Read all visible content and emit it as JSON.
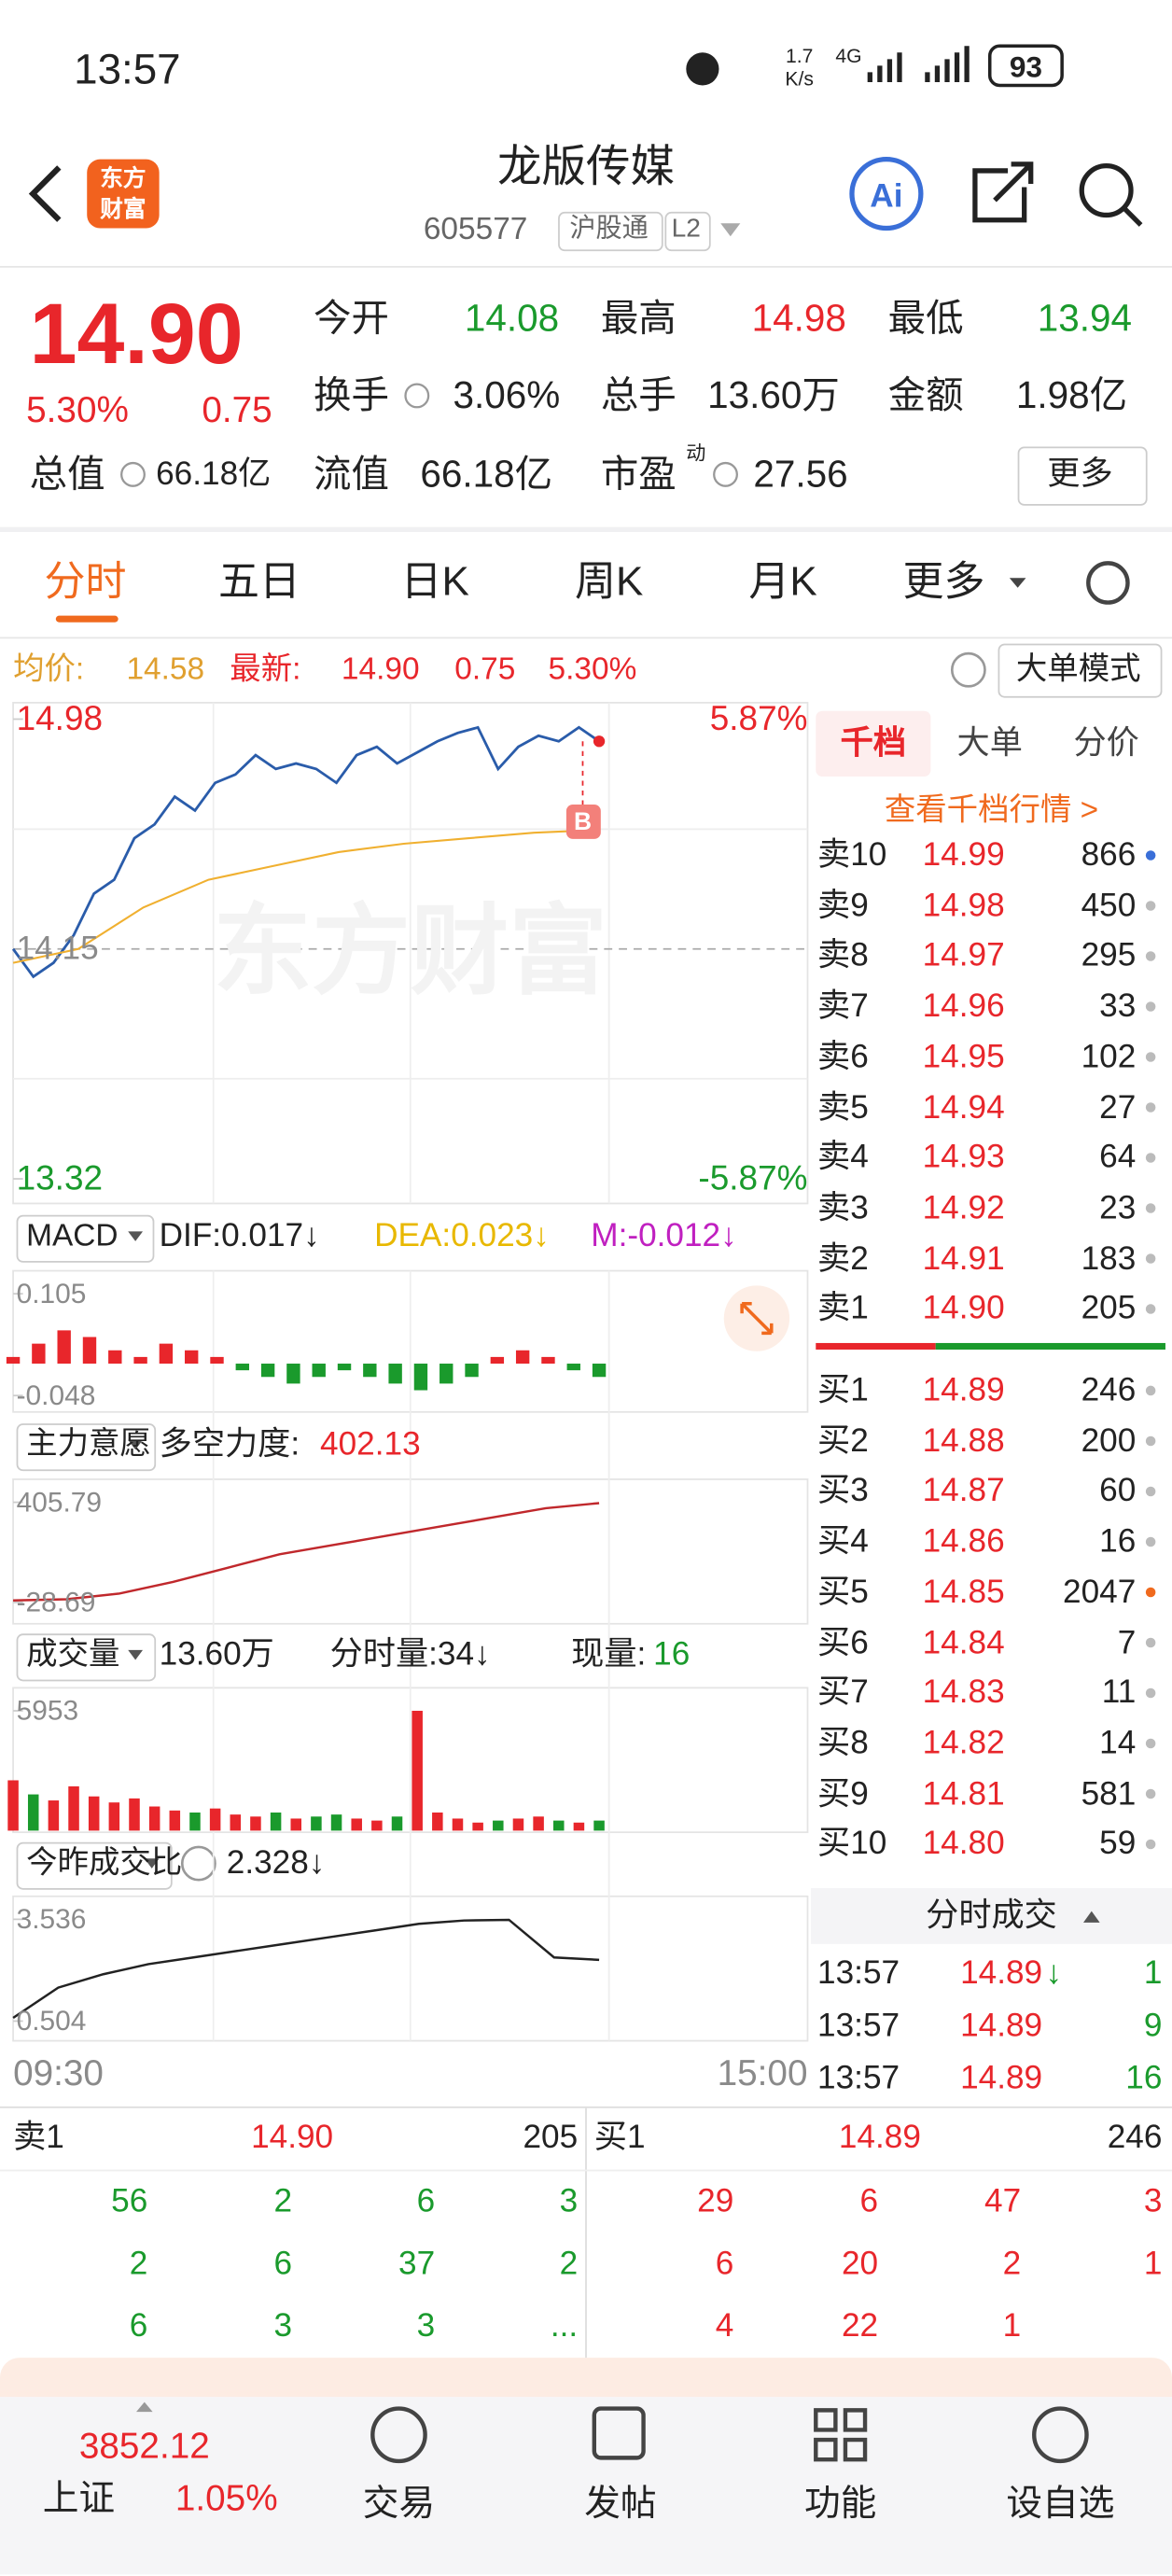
{
  "status": {
    "time": "13:57",
    "speed": "1.7",
    "speed_unit": "K/s",
    "network": "4G",
    "battery": "93"
  },
  "header": {
    "logo": [
      "东方",
      "财富"
    ],
    "title": "龙版传媒",
    "code": "605577",
    "badge": "沪股通",
    "level": "L2"
  },
  "quote": {
    "price": "14.90",
    "change_pct": "5.30%",
    "change": "0.75",
    "fields": [
      {
        "label": "今开",
        "value": "14.08"
      },
      {
        "label": "最高",
        "value": "14.98"
      },
      {
        "label": "最低",
        "value": "13.94"
      },
      {
        "label": "换手",
        "value": "3.06%"
      },
      {
        "label": "总手",
        "value": "13.60万"
      },
      {
        "label": "金额",
        "value": "1.98亿"
      },
      {
        "label": "总值",
        "value": "66.18亿"
      },
      {
        "label": "流值",
        "value": "66.18亿"
      },
      {
        "label": "市盈",
        "sup": "动",
        "value": "27.56"
      }
    ],
    "more": "更多"
  },
  "tabs": [
    "分时",
    "五日",
    "日K",
    "周K",
    "月K",
    "更多"
  ],
  "info_bar": {
    "avg_label": "均价:",
    "avg": "14.58",
    "last_label": "最新:",
    "last": "14.90",
    "change": "0.75",
    "change_pct": "5.30%",
    "mode": "大单模式"
  },
  "chart_data": [
    {
      "type": "line",
      "watermark": "东方财富",
      "marker": "B",
      "ylim": [
        13.32,
        14.98
      ],
      "yticks": [
        13.32,
        14.15,
        14.98
      ],
      "pct_labels": [
        "5.87%",
        "-5.87%"
      ],
      "x_labels": [
        "09:30",
        "15:00"
      ],
      "series": [
        {
          "color": "#2a5caa",
          "values": [
            14.15,
            14.05,
            14.1,
            14.2,
            14.35,
            14.4,
            14.55,
            14.6,
            14.7,
            14.65,
            14.75,
            14.78,
            14.85,
            14.8,
            14.82,
            14.8,
            14.75,
            14.85,
            14.88,
            14.82,
            14.86,
            14.9,
            14.93,
            14.95,
            14.8,
            14.88,
            14.92,
            14.9,
            14.95,
            14.9
          ]
        },
        {
          "color": "#f0b030",
          "values": [
            14.1,
            14.15,
            14.3,
            14.4,
            14.45,
            14.5,
            14.53,
            14.55,
            14.57,
            14.58
          ]
        }
      ]
    },
    {
      "type": "bar",
      "selector": "MACD",
      "indicators": [
        "DIF:0.017↓",
        "DEA:0.023↓",
        "M:-0.012↓"
      ],
      "ylim": [
        -0.048,
        0.105
      ],
      "yticks": [
        -0.048,
        0.105
      ],
      "values": [
        0.01,
        0.03,
        0.05,
        0.04,
        0.02,
        0.01,
        0.03,
        0.02,
        0.01,
        -0.01,
        -0.02,
        -0.03,
        -0.02,
        -0.01,
        -0.02,
        -0.03,
        -0.04,
        -0.03,
        -0.02,
        0.01,
        0.02,
        0.01,
        -0.01,
        -0.02
      ]
    },
    {
      "type": "line",
      "selector": "主力意愿",
      "label": "多空力度:",
      "current": "402.13",
      "ylim": [
        -28.69,
        405.79
      ],
      "yticks": [
        -28.69,
        405.79
      ],
      "color": "#c0282c",
      "values": [
        -20,
        -15,
        10,
        60,
        120,
        180,
        220,
        260,
        300,
        340,
        380,
        402.13
      ]
    },
    {
      "type": "bar",
      "selector": "成交量",
      "total": "13.60万",
      "tick_volume": "分时量:34↓",
      "now_label": "现量:",
      "now": "16",
      "ylim": [
        0,
        5953
      ],
      "yticks": [
        5953
      ],
      "values": [
        2500,
        1800,
        1500,
        2200,
        1700,
        1400,
        1600,
        1200,
        1000,
        900,
        1100,
        800,
        700,
        900,
        600,
        700,
        800,
        600,
        500,
        700,
        5953,
        900,
        600,
        400,
        500,
        600,
        700,
        500,
        400,
        500
      ]
    },
    {
      "type": "line",
      "selector": "今昨成交比",
      "current": "2.328↓",
      "ylim": [
        0.504,
        3.536
      ],
      "yticks": [
        0.504,
        3.536
      ],
      "color": "#222222",
      "values": [
        0.6,
        1.5,
        1.9,
        2.2,
        2.4,
        2.6,
        2.8,
        3.0,
        3.2,
        3.4,
        3.5,
        3.52,
        2.4,
        2.328
      ]
    }
  ],
  "order_book": {
    "tabs": [
      "千档",
      "大单",
      "分价"
    ],
    "link": "查看千档行情 >",
    "asks": [
      {
        "label": "卖10",
        "price": "14.99",
        "volume": "866",
        "dot": "#3a6fd8"
      },
      {
        "label": "卖9",
        "price": "14.98",
        "volume": "450"
      },
      {
        "label": "卖8",
        "price": "14.97",
        "volume": "295"
      },
      {
        "label": "卖7",
        "price": "14.96",
        "volume": "33"
      },
      {
        "label": "卖6",
        "price": "14.95",
        "volume": "102"
      },
      {
        "label": "卖5",
        "price": "14.94",
        "volume": "27"
      },
      {
        "label": "卖4",
        "price": "14.93",
        "volume": "64"
      },
      {
        "label": "卖3",
        "price": "14.92",
        "volume": "23"
      },
      {
        "label": "卖2",
        "price": "14.91",
        "volume": "183"
      },
      {
        "label": "卖1",
        "price": "14.90",
        "volume": "205"
      }
    ],
    "bids": [
      {
        "label": "买1",
        "price": "14.89",
        "volume": "246"
      },
      {
        "label": "买2",
        "price": "14.88",
        "volume": "200"
      },
      {
        "label": "买3",
        "price": "14.87",
        "volume": "60"
      },
      {
        "label": "买4",
        "price": "14.86",
        "volume": "16"
      },
      {
        "label": "买5",
        "price": "14.85",
        "volume": "2047",
        "dot": "#f06a1e"
      },
      {
        "label": "买6",
        "price": "14.84",
        "volume": "7"
      },
      {
        "label": "买7",
        "price": "14.83",
        "volume": "11"
      },
      {
        "label": "买8",
        "price": "14.82",
        "volume": "14"
      },
      {
        "label": "买9",
        "price": "14.81",
        "volume": "581"
      },
      {
        "label": "买10",
        "price": "14.80",
        "volume": "59"
      }
    ],
    "trades_title": "分时成交",
    "trades": [
      {
        "time": "13:57",
        "price": "14.89",
        "arrow": "↓",
        "volume": "1"
      },
      {
        "time": "13:57",
        "price": "14.89",
        "volume": "9"
      },
      {
        "time": "13:57",
        "price": "14.89",
        "volume": "16"
      }
    ]
  },
  "depth": {
    "ask": {
      "label": "卖1",
      "price": "14.90",
      "volume": "205",
      "orders": [
        [
          "56",
          "2",
          "6",
          "3"
        ],
        [
          "2",
          "6",
          "37",
          "2"
        ],
        [
          "6",
          "3",
          "3",
          "..."
        ]
      ]
    },
    "bid": {
      "label": "买1",
      "price": "14.89",
      "volume": "246",
      "orders": [
        [
          "29",
          "6",
          "47",
          "3"
        ],
        [
          "6",
          "20",
          "2",
          "1"
        ],
        [
          "4",
          "22",
          "1"
        ]
      ]
    }
  },
  "nav": {
    "index_value": "3852.12",
    "index_name": "上证",
    "index_pct": "1.05%",
    "items": [
      "交易",
      "发帖",
      "功能",
      "设自选"
    ]
  }
}
